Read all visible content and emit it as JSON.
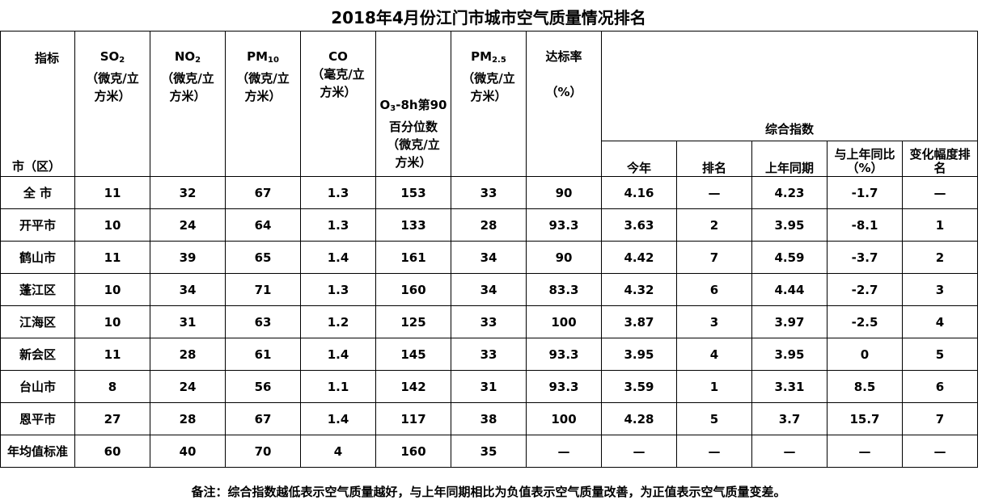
{
  "title": "2018年4月份江门市城市空气质量情况排名",
  "header": {
    "corner": {
      "top": "指标",
      "bottom": "市（区）"
    },
    "columns": [
      {
        "main": "SO",
        "sub": "2",
        "unit": [
          "（微克/立",
          "方米）"
        ]
      },
      {
        "main": "NO",
        "sub": "2",
        "unit": [
          "（微克/立",
          "方米）"
        ]
      },
      {
        "main": "PM",
        "sub": "10",
        "unit": [
          "（微克/立",
          "方米）"
        ]
      },
      {
        "main": "CO",
        "unit": [
          "（毫克/立",
          "方米）"
        ]
      },
      {
        "main": "O",
        "sub": "3",
        "suffix": "-8h第90",
        "unit": [
          "百分位数",
          "（微克/立",
          "方米）"
        ]
      },
      {
        "main": "PM",
        "sub": "2.5",
        "unit": [
          "（微克/立",
          "方米）"
        ]
      },
      {
        "main": "达标率",
        "unit": [
          "（%）"
        ]
      }
    ],
    "group": {
      "title": "综合指数",
      "columns": [
        [
          "今年"
        ],
        [
          "排名"
        ],
        [
          "上年同期"
        ],
        [
          "与上年同比",
          "（%）"
        ],
        [
          "变化幅度排",
          "名"
        ]
      ]
    }
  },
  "table": {
    "rows": [
      [
        "全  市",
        11,
        32,
        67,
        1.3,
        153,
        33,
        90,
        4.16,
        "—",
        4.23,
        -1.7,
        "—"
      ],
      [
        "开平市",
        10,
        24,
        64,
        1.3,
        133,
        28,
        93.3,
        3.63,
        2,
        3.95,
        -8.1,
        1
      ],
      [
        "鹤山市",
        11,
        39,
        65,
        1.4,
        161,
        34,
        90,
        4.42,
        7,
        4.59,
        -3.7,
        2
      ],
      [
        "蓬江区",
        10,
        34,
        71,
        1.3,
        160,
        34,
        83.3,
        4.32,
        6,
        4.44,
        -2.7,
        3
      ],
      [
        "江海区",
        10,
        31,
        63,
        1.2,
        125,
        33,
        100,
        3.87,
        3,
        3.97,
        -2.5,
        4
      ],
      [
        "新会区",
        11,
        28,
        61,
        1.4,
        145,
        33,
        93.3,
        3.95,
        4,
        3.95,
        0,
        5
      ],
      [
        "台山市",
        8,
        24,
        56,
        1.1,
        142,
        31,
        93.3,
        3.59,
        1,
        3.31,
        8.5,
        6
      ],
      [
        "恩平市",
        27,
        28,
        67,
        1.4,
        117,
        38,
        100,
        4.28,
        5,
        3.7,
        15.7,
        7
      ],
      [
        "年均值标准",
        60,
        40,
        70,
        4,
        160,
        35,
        "—",
        "—",
        "—",
        "—",
        "—",
        "—"
      ]
    ]
  },
  "note": "备注：综合指数越低表示空气质量越好，与上年同期相比为负值表示空气质量改善，为正值表示空气质量变差。"
}
